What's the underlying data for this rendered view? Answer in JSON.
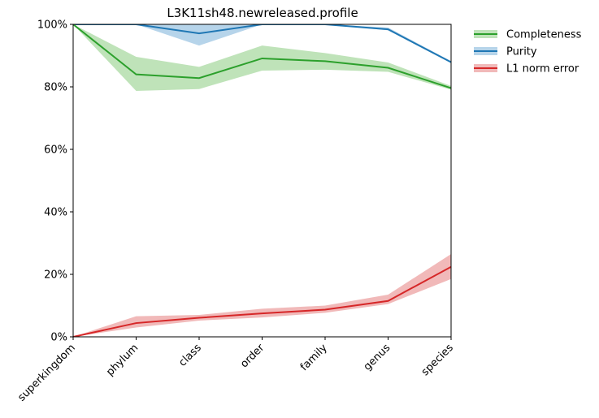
{
  "chart_data": {
    "type": "line",
    "title": "L3K11sh48.newreleased.profile",
    "xlabel": "",
    "ylabel": "",
    "categories": [
      "superkingdom",
      "phylum",
      "class",
      "order",
      "family",
      "genus",
      "species"
    ],
    "ylim": [
      0,
      1
    ],
    "y_ticks": [
      "0%",
      "20%",
      "40%",
      "60%",
      "80%",
      "100%"
    ],
    "grid": false,
    "legend_position": "outside-top-right",
    "series": [
      {
        "name": "Completeness",
        "color": "#2ca02c",
        "band_color": "#bfe3b9",
        "values": [
          1.0,
          0.84,
          0.828,
          0.891,
          0.882,
          0.861,
          0.796
        ],
        "lower": [
          1.0,
          0.787,
          0.793,
          0.852,
          0.855,
          0.848,
          0.791
        ],
        "upper": [
          1.0,
          0.896,
          0.864,
          0.932,
          0.908,
          0.878,
          0.803
        ]
      },
      {
        "name": "Purity",
        "color": "#1f77b4",
        "band_color": "#b6d4ea",
        "values": [
          1.0,
          1.0,
          0.971,
          1.0,
          1.0,
          0.984,
          0.879
        ],
        "lower": [
          1.0,
          1.0,
          0.932,
          1.0,
          1.0,
          0.981,
          0.876
        ],
        "upper": [
          1.0,
          1.0,
          1.0,
          1.0,
          1.0,
          0.99,
          0.882
        ]
      },
      {
        "name": "L1 norm error",
        "color": "#d62728",
        "band_color": "#f1b9b9",
        "values": [
          0.0,
          0.044,
          0.061,
          0.075,
          0.087,
          0.115,
          0.224
        ],
        "lower": [
          0.0,
          0.03,
          0.052,
          0.062,
          0.077,
          0.105,
          0.185
        ],
        "upper": [
          0.0,
          0.066,
          0.07,
          0.09,
          0.1,
          0.135,
          0.265
        ]
      }
    ]
  }
}
